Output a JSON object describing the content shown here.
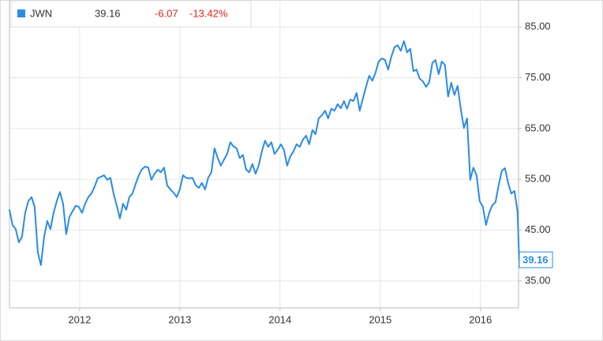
{
  "chart_data": {
    "type": "line",
    "series": [
      {
        "name": "JWN",
        "color": "#2b8be6",
        "change": -6.07,
        "change_percent": "-13.42%",
        "values": [
          49.1,
          46.0,
          45.2,
          42.6,
          43.7,
          48.4,
          50.7,
          51.5,
          49.6,
          40.6,
          38.1,
          43.7,
          46.8,
          45.2,
          48.4,
          50.7,
          52.5,
          50.2,
          44.2,
          47.6,
          48.7,
          49.8,
          49.6,
          48.4,
          50.2,
          51.5,
          52.2,
          53.6,
          55.2,
          55.5,
          55.8,
          54.9,
          55.3,
          52.2,
          49.9,
          47.3,
          50.2,
          49.0,
          51.5,
          52.2,
          54.1,
          55.8,
          57.0,
          57.5,
          57.3,
          54.9,
          56.1,
          56.9,
          56.4,
          57.3,
          53.8,
          53.0,
          52.4,
          51.5,
          53.0,
          55.8,
          55.3,
          55.2,
          55.3,
          53.9,
          53.3,
          54.3,
          53.0,
          55.3,
          56.4,
          61.1,
          59.2,
          57.7,
          58.9,
          60.0,
          62.3,
          61.5,
          61.1,
          59.2,
          59.8,
          56.9,
          56.4,
          58.0,
          56.1,
          57.7,
          60.5,
          62.6,
          61.4,
          62.3,
          60.0,
          60.8,
          61.9,
          60.8,
          57.7,
          59.5,
          60.5,
          61.9,
          61.4,
          62.8,
          63.6,
          61.9,
          64.7,
          63.9,
          67.0,
          67.6,
          68.5,
          67.0,
          68.9,
          68.5,
          69.8,
          69.0,
          70.4,
          68.9,
          70.7,
          70.4,
          72.0,
          68.5,
          70.9,
          73.2,
          75.4,
          74.4,
          76.0,
          78.2,
          78.8,
          78.5,
          76.6,
          79.1,
          81.0,
          81.4,
          80.3,
          82.2,
          80.0,
          80.7,
          76.3,
          76.6,
          74.8,
          74.3,
          73.2,
          74.1,
          77.9,
          78.5,
          75.7,
          78.2,
          77.5,
          71.3,
          74.0,
          71.6,
          73.4,
          68.9,
          65.1,
          67.0,
          54.9,
          57.3,
          55.8,
          50.7,
          49.6,
          46.0,
          48.4,
          49.9,
          50.5,
          53.8,
          56.7,
          57.2,
          54.3,
          52.2,
          52.7,
          48.7,
          39.16
        ]
      }
    ],
    "x": [
      2011.299,
      2011.331,
      2011.362,
      2011.394,
      2011.425,
      2011.457,
      2011.488,
      2011.52,
      2011.551,
      2011.583,
      2011.614,
      2011.646,
      2011.677,
      2011.709,
      2011.74,
      2011.772,
      2011.803,
      2011.835,
      2011.866,
      2011.898,
      2011.929,
      2011.961,
      2011.992,
      2012.024,
      2012.055,
      2012.087,
      2012.118,
      2012.15,
      2012.181,
      2012.213,
      2012.244,
      2012.276,
      2012.307,
      2012.339,
      2012.37,
      2012.402,
      2012.433,
      2012.465,
      2012.496,
      2012.528,
      2012.559,
      2012.591,
      2012.622,
      2012.654,
      2012.685,
      2012.717,
      2012.748,
      2012.78,
      2012.811,
      2012.843,
      2012.874,
      2012.906,
      2012.937,
      2012.969,
      2013.0,
      2013.031,
      2013.063,
      2013.094,
      2013.126,
      2013.157,
      2013.189,
      2013.22,
      2013.252,
      2013.283,
      2013.315,
      2013.346,
      2013.378,
      2013.409,
      2013.441,
      2013.472,
      2013.504,
      2013.535,
      2013.567,
      2013.598,
      2013.63,
      2013.661,
      2013.693,
      2013.724,
      2013.756,
      2013.787,
      2013.819,
      2013.85,
      2013.882,
      2013.913,
      2013.945,
      2013.976,
      2014.008,
      2014.039,
      2014.071,
      2014.102,
      2014.134,
      2014.165,
      2014.197,
      2014.228,
      2014.26,
      2014.291,
      2014.323,
      2014.354,
      2014.386,
      2014.417,
      2014.449,
      2014.48,
      2014.512,
      2014.543,
      2014.575,
      2014.606,
      2014.638,
      2014.669,
      2014.701,
      2014.732,
      2014.764,
      2014.795,
      2014.827,
      2014.858,
      2014.89,
      2014.921,
      2014.953,
      2014.984,
      2015.016,
      2015.047,
      2015.079,
      2015.11,
      2015.142,
      2015.173,
      2015.205,
      2015.236,
      2015.268,
      2015.299,
      2015.331,
      2015.362,
      2015.394,
      2015.425,
      2015.457,
      2015.488,
      2015.52,
      2015.551,
      2015.583,
      2015.614,
      2015.646,
      2015.677,
      2015.709,
      2015.74,
      2015.772,
      2015.803,
      2015.835,
      2015.866,
      2015.898,
      2015.929,
      2015.961,
      2015.992,
      2016.024,
      2016.055,
      2016.087,
      2016.118,
      2016.15,
      2016.181,
      2016.213,
      2016.244,
      2016.276,
      2016.307,
      2016.339,
      2016.37,
      2016.386
    ],
    "xlim": [
      2011.3,
      2016.38
    ],
    "xticks": [
      2012,
      2013,
      2014,
      2015,
      2016
    ],
    "ylim": [
      29.7,
      90.3
    ],
    "yticks": [
      {
        "value": 35,
        "label": "35.00"
      },
      {
        "value": 45,
        "label": "45.00"
      },
      {
        "value": 55,
        "label": "55.00"
      },
      {
        "value": 65,
        "label": "65.00"
      },
      {
        "value": 75,
        "label": "75.00"
      },
      {
        "value": 85,
        "label": "85.00"
      }
    ],
    "grid": true
  }
}
